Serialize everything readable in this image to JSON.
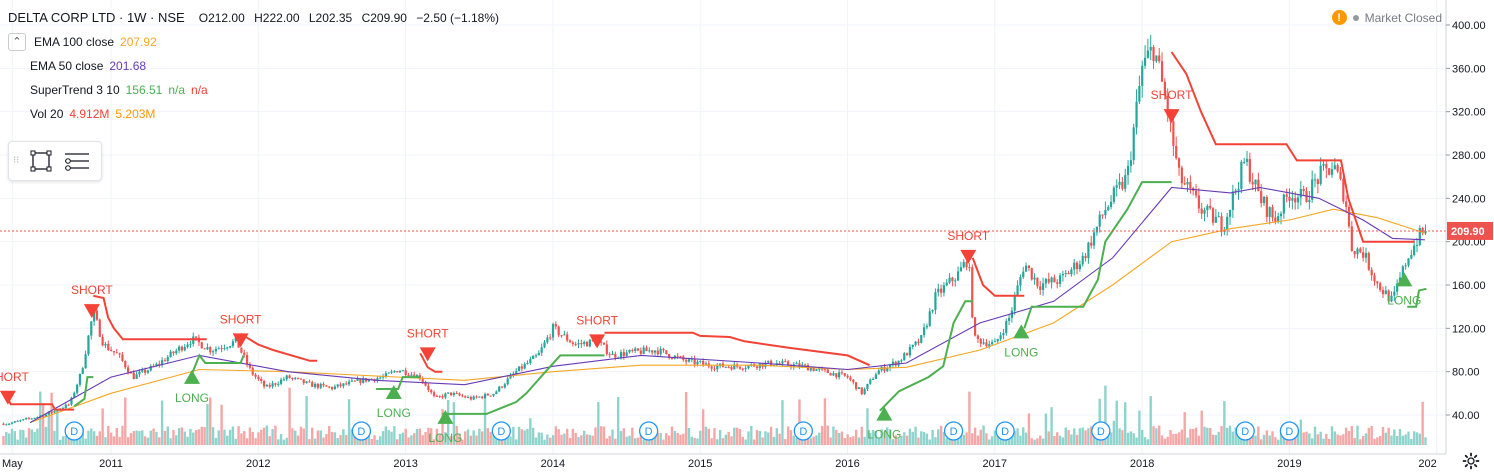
{
  "symbol": {
    "title": "DELTA CORP LTD · 1W · NSE",
    "open": "O212.00",
    "high": "H222.00",
    "low": "L202.35",
    "close": "C209.90",
    "change": "−2.50 (−1.18%)"
  },
  "indicators": {
    "ema100": {
      "label": "EMA 100 close",
      "value": "207.92",
      "color": "#f5a623"
    },
    "ema50": {
      "label": "EMA 50 close",
      "value": "201.68",
      "color": "#673ab7"
    },
    "supertrend": {
      "label": "SuperTrend 3 10",
      "value": "156.51",
      "v2": "n/a",
      "v3": "n/a",
      "up_color": "#4caf50",
      "down_color": "#f44336"
    },
    "vol": {
      "label": "Vol 20",
      "value": "4.912M",
      "ma": "5.203M",
      "value_color": "#f44336",
      "ma_color": "#ff9800"
    }
  },
  "status": {
    "text": "Market Closed",
    "warn": "!"
  },
  "price_label": {
    "value": "209.90"
  },
  "chart_data": {
    "type": "candlestick",
    "title": "DELTA CORP LTD · 1W · NSE",
    "y_ticks": [
      "400.00",
      "360.00",
      "320.00",
      "280.00",
      "240.00",
      "200.00",
      "160.00",
      "120.00",
      "80.00",
      "40.00"
    ],
    "ylim": [
      12,
      409
    ],
    "x_ticks": [
      "May",
      "2011",
      "2012",
      "2013",
      "2014",
      "2015",
      "2016",
      "2017",
      "2018",
      "2019",
      "202"
    ],
    "last_price": 209.9,
    "close_anchors": [
      {
        "t": 2010.3,
        "c": 32
      },
      {
        "t": 2010.55,
        "c": 40
      },
      {
        "t": 2010.72,
        "c": 50
      },
      {
        "t": 2010.8,
        "c": 80
      },
      {
        "t": 2010.88,
        "c": 135
      },
      {
        "t": 2010.95,
        "c": 105
      },
      {
        "t": 2011.05,
        "c": 95
      },
      {
        "t": 2011.15,
        "c": 75
      },
      {
        "t": 2011.3,
        "c": 85
      },
      {
        "t": 2011.45,
        "c": 100
      },
      {
        "t": 2011.55,
        "c": 110
      },
      {
        "t": 2011.68,
        "c": 100
      },
      {
        "t": 2011.85,
        "c": 108
      },
      {
        "t": 2011.95,
        "c": 80
      },
      {
        "t": 2012.05,
        "c": 65
      },
      {
        "t": 2012.2,
        "c": 75
      },
      {
        "t": 2012.35,
        "c": 68
      },
      {
        "t": 2012.5,
        "c": 65
      },
      {
        "t": 2012.7,
        "c": 72
      },
      {
        "t": 2012.85,
        "c": 75
      },
      {
        "t": 2012.95,
        "c": 82
      },
      {
        "t": 2013.1,
        "c": 75
      },
      {
        "t": 2013.2,
        "c": 55
      },
      {
        "t": 2013.3,
        "c": 60
      },
      {
        "t": 2013.45,
        "c": 55
      },
      {
        "t": 2013.6,
        "c": 60
      },
      {
        "t": 2013.75,
        "c": 80
      },
      {
        "t": 2013.9,
        "c": 95
      },
      {
        "t": 2014.0,
        "c": 120
      },
      {
        "t": 2014.15,
        "c": 105
      },
      {
        "t": 2014.3,
        "c": 108
      },
      {
        "t": 2014.4,
        "c": 95
      },
      {
        "t": 2014.55,
        "c": 98
      },
      {
        "t": 2014.7,
        "c": 100
      },
      {
        "t": 2014.9,
        "c": 90
      },
      {
        "t": 2015.1,
        "c": 85
      },
      {
        "t": 2015.3,
        "c": 85
      },
      {
        "t": 2015.5,
        "c": 88
      },
      {
        "t": 2015.7,
        "c": 85
      },
      {
        "t": 2015.85,
        "c": 80
      },
      {
        "t": 2016.0,
        "c": 75
      },
      {
        "t": 2016.1,
        "c": 60
      },
      {
        "t": 2016.2,
        "c": 80
      },
      {
        "t": 2016.35,
        "c": 90
      },
      {
        "t": 2016.5,
        "c": 110
      },
      {
        "t": 2016.6,
        "c": 150
      },
      {
        "t": 2016.75,
        "c": 170
      },
      {
        "t": 2016.82,
        "c": 185
      },
      {
        "t": 2016.86,
        "c": 110
      },
      {
        "t": 2017.0,
        "c": 105
      },
      {
        "t": 2017.1,
        "c": 130
      },
      {
        "t": 2017.2,
        "c": 180
      },
      {
        "t": 2017.3,
        "c": 160
      },
      {
        "t": 2017.45,
        "c": 165
      },
      {
        "t": 2017.6,
        "c": 185
      },
      {
        "t": 2017.75,
        "c": 230
      },
      {
        "t": 2017.9,
        "c": 260
      },
      {
        "t": 2018.0,
        "c": 360
      },
      {
        "t": 2018.08,
        "c": 380
      },
      {
        "t": 2018.16,
        "c": 330
      },
      {
        "t": 2018.25,
        "c": 260
      },
      {
        "t": 2018.4,
        "c": 230
      },
      {
        "t": 2018.55,
        "c": 215
      },
      {
        "t": 2018.7,
        "c": 275
      },
      {
        "t": 2018.8,
        "c": 240
      },
      {
        "t": 2018.9,
        "c": 220
      },
      {
        "t": 2019.0,
        "c": 245
      },
      {
        "t": 2019.1,
        "c": 240
      },
      {
        "t": 2019.2,
        "c": 260
      },
      {
        "t": 2019.3,
        "c": 270
      },
      {
        "t": 2019.38,
        "c": 240
      },
      {
        "t": 2019.42,
        "c": 195
      },
      {
        "t": 2019.5,
        "c": 190
      },
      {
        "t": 2019.6,
        "c": 160
      },
      {
        "t": 2019.7,
        "c": 145
      },
      {
        "t": 2019.8,
        "c": 185
      },
      {
        "t": 2019.88,
        "c": 205
      },
      {
        "t": 2019.92,
        "c": 209.9
      }
    ],
    "ema50": [
      {
        "t": 2010.45,
        "c": 33
      },
      {
        "t": 2011.0,
        "c": 75
      },
      {
        "t": 2011.6,
        "c": 95
      },
      {
        "t": 2012.2,
        "c": 80
      },
      {
        "t": 2012.8,
        "c": 72
      },
      {
        "t": 2013.4,
        "c": 68
      },
      {
        "t": 2014.0,
        "c": 85
      },
      {
        "t": 2014.6,
        "c": 95
      },
      {
        "t": 2015.4,
        "c": 88
      },
      {
        "t": 2016.0,
        "c": 82
      },
      {
        "t": 2016.4,
        "c": 88
      },
      {
        "t": 2016.9,
        "c": 125
      },
      {
        "t": 2017.4,
        "c": 145
      },
      {
        "t": 2017.8,
        "c": 185
      },
      {
        "t": 2018.2,
        "c": 250
      },
      {
        "t": 2018.6,
        "c": 245
      },
      {
        "t": 2018.8,
        "c": 250
      },
      {
        "t": 2019.2,
        "c": 240
      },
      {
        "t": 2019.5,
        "c": 220
      },
      {
        "t": 2019.7,
        "c": 203
      },
      {
        "t": 2019.92,
        "c": 201.68
      }
    ],
    "ema100": [
      {
        "t": 2010.45,
        "c": 33
      },
      {
        "t": 2011.0,
        "c": 60
      },
      {
        "t": 2011.6,
        "c": 82
      },
      {
        "t": 2012.2,
        "c": 80
      },
      {
        "t": 2012.8,
        "c": 76
      },
      {
        "t": 2013.4,
        "c": 72
      },
      {
        "t": 2014.0,
        "c": 80
      },
      {
        "t": 2014.6,
        "c": 86
      },
      {
        "t": 2015.4,
        "c": 86
      },
      {
        "t": 2016.0,
        "c": 82
      },
      {
        "t": 2016.4,
        "c": 84
      },
      {
        "t": 2016.9,
        "c": 100
      },
      {
        "t": 2017.4,
        "c": 125
      },
      {
        "t": 2017.8,
        "c": 160
      },
      {
        "t": 2018.2,
        "c": 200
      },
      {
        "t": 2018.6,
        "c": 212
      },
      {
        "t": 2019.0,
        "c": 220
      },
      {
        "t": 2019.3,
        "c": 230
      },
      {
        "t": 2019.6,
        "c": 222
      },
      {
        "t": 2019.92,
        "c": 207.92
      }
    ],
    "supertrend_segments": [
      {
        "dir": "down",
        "points": [
          {
            "t": 2010.3,
            "c": 55
          },
          {
            "t": 2010.32,
            "c": 50
          },
          {
            "t": 2010.6,
            "c": 50
          },
          {
            "t": 2010.62,
            "c": 45
          },
          {
            "t": 2010.75,
            "c": 45
          }
        ]
      },
      {
        "dir": "up",
        "points": [
          {
            "t": 2010.75,
            "c": 48
          },
          {
            "t": 2010.82,
            "c": 55
          },
          {
            "t": 2010.84,
            "c": 75
          },
          {
            "t": 2010.88,
            "c": 75
          }
        ]
      },
      {
        "dir": "down",
        "points": [
          {
            "t": 2010.88,
            "c": 150
          },
          {
            "t": 2010.95,
            "c": 148
          },
          {
            "t": 2010.98,
            "c": 130
          },
          {
            "t": 2011.02,
            "c": 120
          },
          {
            "t": 2011.08,
            "c": 110
          },
          {
            "t": 2011.65,
            "c": 110
          }
        ]
      },
      {
        "dir": "up",
        "points": [
          {
            "t": 2011.55,
            "c": 78
          },
          {
            "t": 2011.6,
            "c": 95
          },
          {
            "t": 2011.64,
            "c": 88
          },
          {
            "t": 2011.88,
            "c": 88
          },
          {
            "t": 2011.9,
            "c": 95
          }
        ]
      },
      {
        "dir": "down",
        "points": [
          {
            "t": 2011.88,
            "c": 115
          },
          {
            "t": 2012.0,
            "c": 105
          },
          {
            "t": 2012.1,
            "c": 100
          },
          {
            "t": 2012.35,
            "c": 90
          },
          {
            "t": 2012.4,
            "c": 90
          }
        ]
      },
      {
        "dir": "up",
        "points": [
          {
            "t": 2012.8,
            "c": 64
          },
          {
            "t": 2012.95,
            "c": 64
          },
          {
            "t": 2012.98,
            "c": 75
          },
          {
            "t": 2013.1,
            "c": 75
          }
        ]
      },
      {
        "dir": "down",
        "points": [
          {
            "t": 2013.1,
            "c": 97
          },
          {
            "t": 2013.15,
            "c": 84
          },
          {
            "t": 2013.2,
            "c": 80
          },
          {
            "t": 2013.25,
            "c": 80
          }
        ]
      },
      {
        "dir": "up",
        "points": [
          {
            "t": 2013.25,
            "c": 41
          },
          {
            "t": 2013.55,
            "c": 41
          },
          {
            "t": 2013.75,
            "c": 52
          },
          {
            "t": 2013.82,
            "c": 60
          },
          {
            "t": 2013.95,
            "c": 80
          },
          {
            "t": 2014.05,
            "c": 95
          },
          {
            "t": 2014.35,
            "c": 95
          }
        ]
      },
      {
        "dir": "down",
        "points": [
          {
            "t": 2014.35,
            "c": 116
          },
          {
            "t": 2014.95,
            "c": 116
          },
          {
            "t": 2015.0,
            "c": 113
          },
          {
            "t": 2015.2,
            "c": 112
          },
          {
            "t": 2015.3,
            "c": 108
          },
          {
            "t": 2015.6,
            "c": 102
          },
          {
            "t": 2016.0,
            "c": 95
          },
          {
            "t": 2016.15,
            "c": 86
          }
        ]
      },
      {
        "dir": "up",
        "points": [
          {
            "t": 2016.22,
            "c": 44
          },
          {
            "t": 2016.35,
            "c": 62
          },
          {
            "t": 2016.55,
            "c": 75
          },
          {
            "t": 2016.65,
            "c": 85
          },
          {
            "t": 2016.72,
            "c": 125
          },
          {
            "t": 2016.8,
            "c": 145
          },
          {
            "t": 2016.85,
            "c": 145
          }
        ]
      },
      {
        "dir": "down",
        "points": [
          {
            "t": 2016.85,
            "c": 185
          },
          {
            "t": 2016.92,
            "c": 160
          },
          {
            "t": 2017.0,
            "c": 150
          },
          {
            "t": 2017.2,
            "c": 150
          }
        ]
      },
      {
        "dir": "up",
        "points": [
          {
            "t": 2017.2,
            "c": 120
          },
          {
            "t": 2017.25,
            "c": 140
          },
          {
            "t": 2017.6,
            "c": 140
          },
          {
            "t": 2017.7,
            "c": 165
          },
          {
            "t": 2017.75,
            "c": 200
          },
          {
            "t": 2017.9,
            "c": 230
          },
          {
            "t": 2018.0,
            "c": 255
          },
          {
            "t": 2018.2,
            "c": 255
          }
        ]
      },
      {
        "dir": "down",
        "points": [
          {
            "t": 2018.2,
            "c": 375
          },
          {
            "t": 2018.3,
            "c": 355
          },
          {
            "t": 2018.4,
            "c": 320
          },
          {
            "t": 2018.5,
            "c": 290
          },
          {
            "t": 2018.98,
            "c": 290
          },
          {
            "t": 2019.05,
            "c": 275
          },
          {
            "t": 2019.35,
            "c": 275
          },
          {
            "t": 2019.4,
            "c": 240
          },
          {
            "t": 2019.5,
            "c": 200
          },
          {
            "t": 2019.85,
            "c": 200
          }
        ]
      },
      {
        "dir": "up",
        "points": [
          {
            "t": 2019.8,
            "c": 140
          },
          {
            "t": 2019.86,
            "c": 140
          },
          {
            "t": 2019.88,
            "c": 155
          },
          {
            "t": 2019.93,
            "c": 156.51
          }
        ]
      }
    ],
    "signals": [
      {
        "type": "SHORT",
        "t": 2010.3,
        "c": 55
      },
      {
        "type": "SHORT",
        "t": 2010.87,
        "c": 135
      },
      {
        "type": "LONG",
        "t": 2011.55,
        "c": 78
      },
      {
        "type": "SHORT",
        "t": 2011.88,
        "c": 108
      },
      {
        "type": "LONG",
        "t": 2012.92,
        "c": 64
      },
      {
        "type": "SHORT",
        "t": 2013.15,
        "c": 95
      },
      {
        "type": "LONG",
        "t": 2013.27,
        "c": 41
      },
      {
        "type": "SHORT",
        "t": 2014.3,
        "c": 107
      },
      {
        "type": "LONG",
        "t": 2016.25,
        "c": 44
      },
      {
        "type": "SHORT",
        "t": 2016.82,
        "c": 185
      },
      {
        "type": "LONG",
        "t": 2017.18,
        "c": 120
      },
      {
        "type": "SHORT",
        "t": 2018.2,
        "c": 315
      },
      {
        "type": "LONG",
        "t": 2019.78,
        "c": 168
      }
    ],
    "dividend_markers": [
      2010.75,
      2012.7,
      2013.65,
      2014.65,
      2015.7,
      2016.72,
      2017.07,
      2017.72,
      2018.7,
      2019.0
    ],
    "dividend_label": "D",
    "volume_ylim": [
      0,
      100
    ],
    "grid": true
  }
}
